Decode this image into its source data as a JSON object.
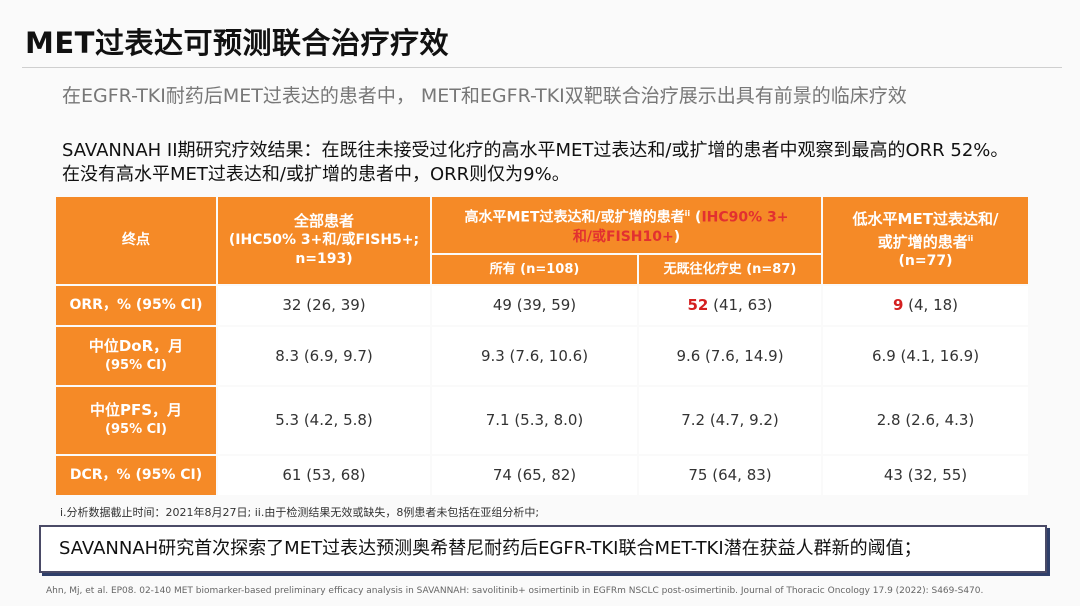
{
  "title": "MET过表达可预测联合治疗疗效",
  "subtitle": "在EGFR-TKI耐药后MET过表达的患者中， MET和EGFR-TKI双靶联合治疗展示出具有前景的临床疗效",
  "intro": "SAVANNAH II期研究疗效结果：在既往未接受过化疗的高水平MET过表达和/或扩增的患者中观察到最高的ORR 52%。在没有高水平MET过表达和/或扩增的患者中，ORR则仅为9%。",
  "table": {
    "endpoint_header": "终点",
    "all_patients": {
      "line1": "全部患者",
      "line2": "(IHC50% 3+和/或FISH5+;",
      "line3": "n=193)"
    },
    "high_met": {
      "label": "高水平MET过表达和/或扩增的患者",
      "sup": "ii",
      "criteria_open": " (",
      "criteria_red_1": "IHC90% 3+",
      "criteria_red_2": "和/或",
      "criteria_red_3": "FISH10+",
      "criteria_close": ")",
      "sub_all": "所有 (n=108)",
      "sub_no_chemo": "无既往化疗史 (n=87)"
    },
    "low_met": {
      "line1": "低水平MET过表达和/",
      "line2": "或扩增的患者",
      "sup": "ii",
      "line3": "(n=77)"
    },
    "rows": [
      {
        "label1": "ORR，% (95% CI)",
        "label2": "",
        "all": "32 (26, 39)",
        "high_all": "49 (39, 59)",
        "high_nochemo_main": "52",
        "high_nochemo_ci": " (41, 63)",
        "low_main": "9",
        "low_ci": " (4, 18)"
      },
      {
        "label1": "中位DoR，月",
        "label2": "(95% CI)",
        "all": "8.3 (6.9, 9.7)",
        "high_all": "9.3 (7.6, 10.6)",
        "high_nochemo_main": "",
        "high_nochemo_ci": "9.6 (7.6, 14.9)",
        "low_main": "",
        "low_ci": "6.9 (4.1, 16.9)"
      },
      {
        "label1": "中位PFS，月",
        "label2": "(95% CI)",
        "all": "5.3 (4.2, 5.8)",
        "high_all": "7.1 (5.3, 8.0)",
        "high_nochemo_main": "",
        "high_nochemo_ci": "7.2 (4.7, 9.2)",
        "low_main": "",
        "low_ci": "2.8 (2.6, 4.3)"
      },
      {
        "label1": "DCR，% (95% CI)",
        "label2": "",
        "all": "61 (53, 68)",
        "high_all": "74 (65, 82)",
        "high_nochemo_main": "",
        "high_nochemo_ci": "75 (64, 83)",
        "low_main": "",
        "low_ci": "43 (32, 55)"
      }
    ]
  },
  "footnote": "i.分析数据截止时间：2021年8月27日; ii.由于检测结果无效或缺失，8例患者未包括在亚组分析中;",
  "summary": "SAVANNAH研究首次探索了MET过表达预测奥希替尼耐药后EGFR-TKI联合MET-TKI潜在获益人群新的阈值；",
  "reference": "Ahn, Mj, et al. EP08. 02-140 MET biomarker-based preliminary efficacy analysis in SAVANNAH: savolitinib+ osimertinib in EGFRm NSCLC post-osimertinib. Journal of Thoracic Oncology 17.9 (2022): S469-S470.",
  "colors": {
    "accent": "#f58a27",
    "highlight_red": "#d42020",
    "summary_border": "#4a4a66"
  }
}
